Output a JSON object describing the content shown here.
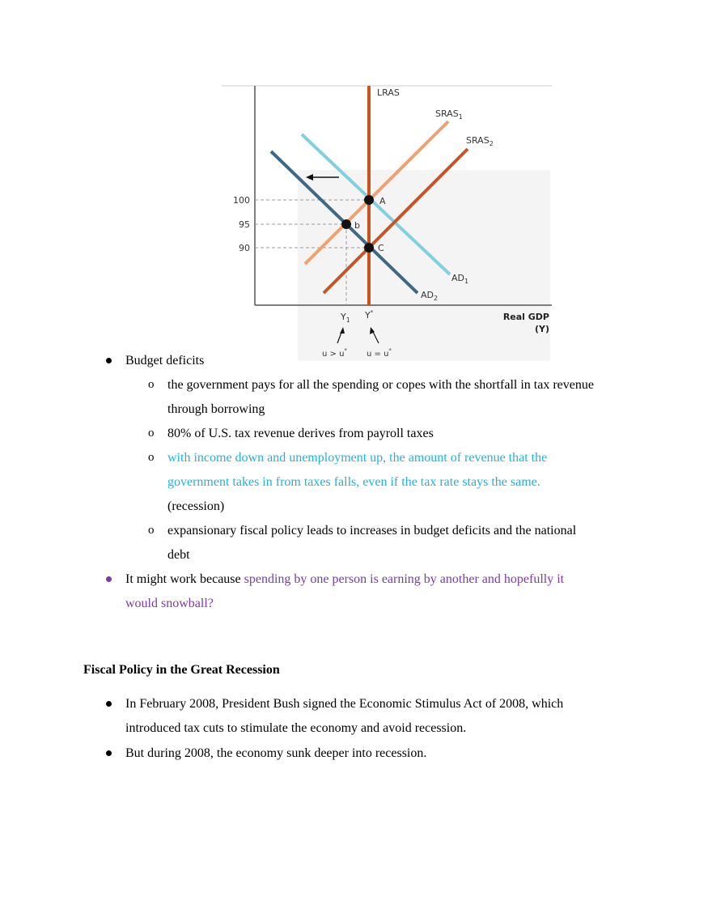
{
  "diagram": {
    "lras_label": "LRAS",
    "sras1_label": "SRAS",
    "sras1_sub": "1",
    "sras2_label": "SRAS",
    "sras2_sub": "2",
    "ad1_label": "AD",
    "ad1_sub": "1",
    "ad2_label": "AD",
    "ad2_sub": "2",
    "point_a": "A",
    "point_b": "b",
    "point_c": "C",
    "y_ticks": [
      "100",
      "95",
      "90"
    ],
    "x_y1": "Y",
    "x_y1_sub": "1",
    "x_ystar": "Y",
    "x_ystar_sup": "*",
    "x_axis_label_line1": "Real GDP",
    "x_axis_label_line2": "(Y)",
    "note_left": "u > u",
    "note_left_sup": "*",
    "note_right": "u = u",
    "note_right_sup": "*",
    "colors": {
      "lras": "#c9541f",
      "sras1": "#eea26f",
      "sras2": "#c9541f",
      "ad1": "#82cfe0",
      "ad2": "#3d6985",
      "axis": "#555555",
      "guide": "#9a9a9a"
    }
  },
  "bullets": {
    "budget_deficits": "Budget deficits",
    "sub1_line1": "the government pays for all the spending or copes with the shortfall in tax revenue",
    "sub1_line2": "through borrowing",
    "sub2": "80% of U.S. tax revenue derives from payroll taxes",
    "sub3_line1": "with income down and unemployment up, the amount of revenue that the",
    "sub3_line2": "government takes in from taxes falls, even if the tax rate stays the same.",
    "sub3_line3": "(recession)",
    "sub4_line1": "expansionary fiscal policy leads to increases in budget deficits and the national",
    "sub4_line2": "debt",
    "work_prefix": "It might work because ",
    "work_purple_1": "spending by one person is earning by another and hopefully it",
    "work_purple_2": "would snowball?",
    "sub_marker": "o"
  },
  "section": {
    "heading": "Fiscal Policy in the Great Recession",
    "item1_line1": "In February 2008, President Bush signed the Economic Stimulus Act of 2008, which",
    "item1_line2": "introduced tax cuts to stimulate the economy and avoid recession.",
    "item2": "But during 2008, the economy sunk deeper into recession."
  }
}
